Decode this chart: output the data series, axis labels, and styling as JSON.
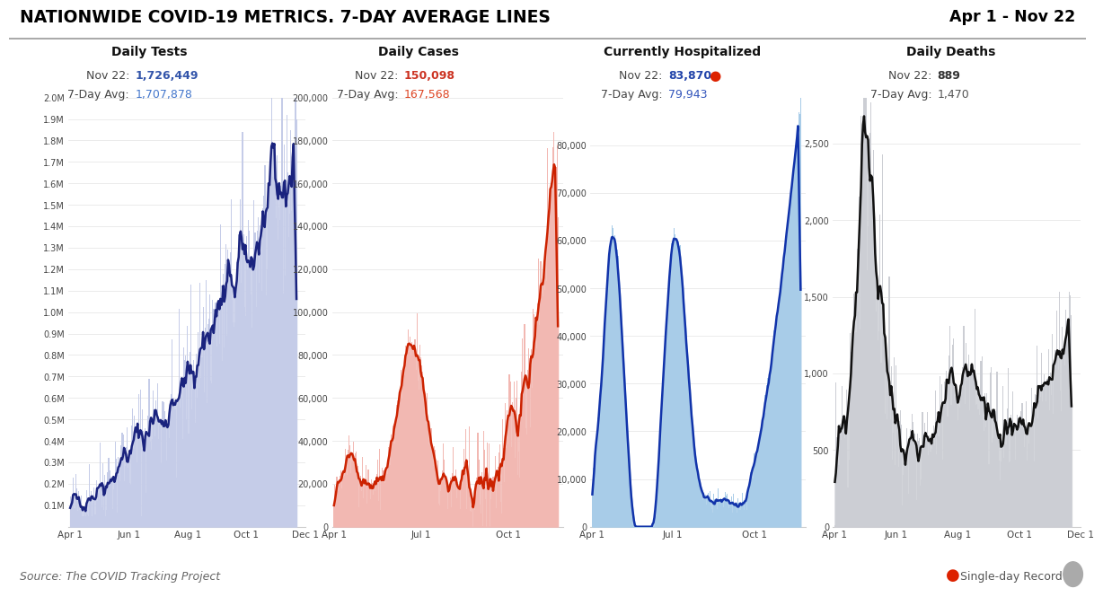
{
  "title": "NATIONWIDE COVID-19 METRICS. 7-DAY AVERAGE LINES",
  "date_range": "Apr 1 - Nov 22",
  "source": "Source: The COVID Tracking Project",
  "panels": [
    {
      "label": "Daily Tests",
      "nov22_value": "1,726,449",
      "avg_value": "1,707,878",
      "color_value": "#3355aa",
      "color_avg": "#4477cc",
      "fill_color": "#c5cce8",
      "line_color": "#1a237e",
      "bar_color": "#c5cce8",
      "ymax": 2000000,
      "yticks": [
        100000,
        200000,
        300000,
        400000,
        500000,
        600000,
        700000,
        800000,
        900000,
        1000000,
        1100000,
        1200000,
        1300000,
        1400000,
        1500000,
        1600000,
        1700000,
        1800000,
        1900000,
        2000000
      ],
      "ytick_labels": [
        "0.1M",
        "0.2M",
        "0.3M",
        "0.4M",
        "0.5M",
        "0.6M",
        "0.7M",
        "0.8M",
        "0.9M",
        "1.0M",
        "1.1M",
        "1.2M",
        "1.3M",
        "1.4M",
        "1.5M",
        "1.6M",
        "1.7M",
        "1.8M",
        "1.9M",
        "2.0M"
      ],
      "xtick_names": [
        "Apr 1",
        "Jun 1",
        "Aug 1",
        "Oct 1",
        "Dec 1"
      ],
      "record_dot": false
    },
    {
      "label": "Daily Cases",
      "nov22_value": "150,098",
      "avg_value": "167,568",
      "color_value": "#cc3322",
      "color_avg": "#dd4422",
      "fill_color": "#f2b8b2",
      "line_color": "#cc2200",
      "bar_color": "#f2b8b2",
      "ymax": 200000,
      "yticks": [
        0,
        20000,
        40000,
        60000,
        80000,
        100000,
        120000,
        140000,
        160000,
        180000,
        200000
      ],
      "ytick_labels": [
        "0",
        "20,000",
        "40,000",
        "60,000",
        "80,000",
        "100,000",
        "120,000",
        "140,000",
        "160,000",
        "180,000",
        "200,000"
      ],
      "xtick_names": [
        "Apr 1",
        "Jul 1",
        "Oct 1"
      ],
      "record_dot": false
    },
    {
      "label": "Currently Hospitalized",
      "nov22_value": "83,870",
      "avg_value": "79,943",
      "color_value": "#2244aa",
      "color_avg": "#3355bb",
      "fill_color": "#a8cce8",
      "line_color": "#1133aa",
      "bar_color": "#a8cce8",
      "ymax": 90000,
      "yticks": [
        0,
        10000,
        20000,
        30000,
        40000,
        50000,
        60000,
        70000,
        80000
      ],
      "ytick_labels": [
        "0",
        "10,000",
        "20,000",
        "30,000",
        "40,000",
        "50,000",
        "60,000",
        "70,000",
        "80,000"
      ],
      "xtick_names": [
        "Apr 1",
        "Jul 1",
        "Oct 1"
      ],
      "record_dot": true
    },
    {
      "label": "Daily Deaths",
      "nov22_value": "889",
      "avg_value": "1,470",
      "color_value": "#333333",
      "color_avg": "#555555",
      "fill_color": "#ccced4",
      "line_color": "#111111",
      "bar_color": "#ccced4",
      "ymax": 2800,
      "yticks": [
        0,
        500,
        1000,
        1500,
        2000,
        2500
      ],
      "ytick_labels": [
        "0",
        "500",
        "1,000",
        "1,500",
        "2,000",
        "2,500"
      ],
      "xtick_names": [
        "Apr 1",
        "Jun 1",
        "Aug 1",
        "Oct 1",
        "Dec 1"
      ],
      "record_dot": false
    }
  ],
  "month_days": {
    "Apr 1": 0,
    "Jun 1": 61,
    "Jul 1": 91,
    "Aug 1": 122,
    "Oct 1": 183,
    "Dec 1": 244
  }
}
